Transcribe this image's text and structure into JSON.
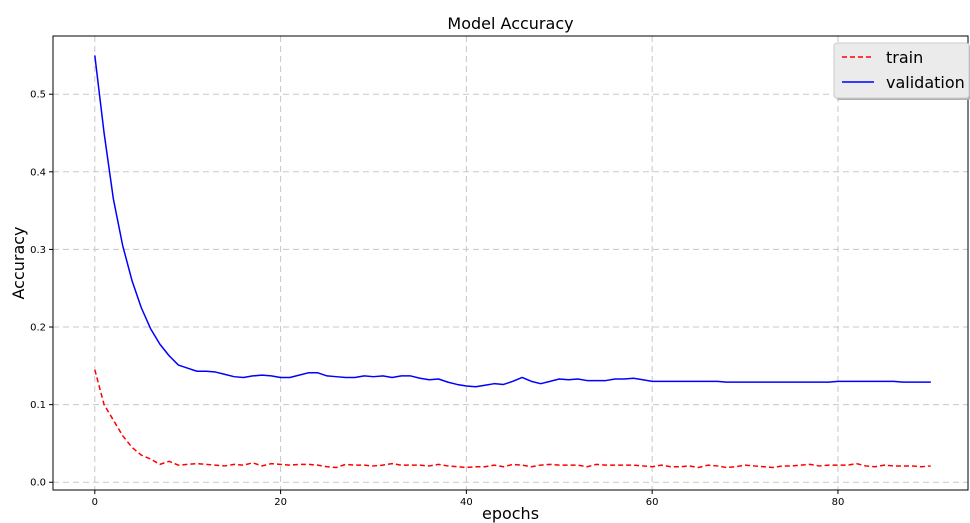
{
  "chart_data": {
    "type": "line",
    "title": "Model Accuracy",
    "xlabel": "epochs",
    "ylabel": "Accuracy",
    "xlim": [
      -4.5,
      94
    ],
    "ylim": [
      -0.01,
      0.575
    ],
    "xticks": [
      0,
      20,
      40,
      60,
      80
    ],
    "yticks": [
      0.0,
      0.1,
      0.2,
      0.3,
      0.4,
      0.5
    ],
    "ytick_labels": [
      "0.0",
      "0.1",
      "0.2",
      "0.3",
      "0.4",
      "0.5"
    ],
    "xtick_labels": [
      "0",
      "20",
      "40",
      "60",
      "80"
    ],
    "grid": true,
    "legend_position": "top-right",
    "x": [
      0,
      1,
      2,
      3,
      4,
      5,
      6,
      7,
      8,
      9,
      10,
      11,
      12,
      13,
      14,
      15,
      16,
      17,
      18,
      19,
      20,
      21,
      22,
      23,
      24,
      25,
      26,
      27,
      28,
      29,
      30,
      31,
      32,
      33,
      34,
      35,
      36,
      37,
      38,
      39,
      40,
      41,
      42,
      43,
      44,
      45,
      46,
      47,
      48,
      49,
      50,
      51,
      52,
      53,
      54,
      55,
      56,
      57,
      58,
      59,
      60,
      61,
      62,
      63,
      64,
      65,
      66,
      67,
      68,
      69,
      70,
      71,
      72,
      73,
      74,
      75,
      76,
      77,
      78,
      79,
      80,
      81,
      82,
      83,
      84,
      85,
      86,
      87,
      88,
      89,
      90
    ],
    "series": [
      {
        "name": "train",
        "color": "#ff0000",
        "style": "dashed",
        "values": [
          0.145,
          0.1,
          0.08,
          0.06,
          0.045,
          0.035,
          0.03,
          0.023,
          0.027,
          0.022,
          0.023,
          0.024,
          0.023,
          0.022,
          0.021,
          0.023,
          0.022,
          0.025,
          0.021,
          0.024,
          0.023,
          0.022,
          0.023,
          0.023,
          0.022,
          0.02,
          0.019,
          0.023,
          0.022,
          0.022,
          0.021,
          0.022,
          0.024,
          0.022,
          0.022,
          0.022,
          0.021,
          0.023,
          0.021,
          0.02,
          0.019,
          0.02,
          0.02,
          0.022,
          0.02,
          0.023,
          0.022,
          0.02,
          0.022,
          0.023,
          0.022,
          0.022,
          0.022,
          0.02,
          0.023,
          0.022,
          0.022,
          0.022,
          0.022,
          0.021,
          0.02,
          0.022,
          0.02,
          0.02,
          0.021,
          0.019,
          0.022,
          0.021,
          0.019,
          0.02,
          0.022,
          0.021,
          0.02,
          0.019,
          0.021,
          0.021,
          0.022,
          0.023,
          0.021,
          0.022,
          0.022,
          0.022,
          0.024,
          0.021,
          0.02,
          0.022,
          0.021,
          0.021,
          0.021,
          0.02,
          0.021
        ]
      },
      {
        "name": "validation",
        "color": "#0000ff",
        "style": "solid",
        "values": [
          0.55,
          0.45,
          0.365,
          0.305,
          0.26,
          0.225,
          0.198,
          0.178,
          0.163,
          0.151,
          0.147,
          0.143,
          0.143,
          0.142,
          0.139,
          0.136,
          0.135,
          0.137,
          0.138,
          0.137,
          0.135,
          0.135,
          0.138,
          0.141,
          0.141,
          0.137,
          0.136,
          0.135,
          0.135,
          0.137,
          0.136,
          0.137,
          0.135,
          0.137,
          0.137,
          0.134,
          0.132,
          0.133,
          0.129,
          0.126,
          0.124,
          0.123,
          0.125,
          0.127,
          0.126,
          0.13,
          0.135,
          0.13,
          0.127,
          0.13,
          0.133,
          0.132,
          0.133,
          0.131,
          0.131,
          0.131,
          0.133,
          0.133,
          0.134,
          0.132,
          0.13,
          0.13,
          0.13,
          0.13,
          0.13,
          0.13,
          0.13,
          0.13,
          0.129,
          0.129,
          0.129,
          0.129,
          0.129,
          0.129,
          0.129,
          0.129,
          0.129,
          0.129,
          0.129,
          0.129,
          0.13,
          0.13,
          0.13,
          0.13,
          0.13,
          0.13,
          0.13,
          0.129,
          0.129,
          0.129,
          0.129
        ]
      }
    ]
  }
}
